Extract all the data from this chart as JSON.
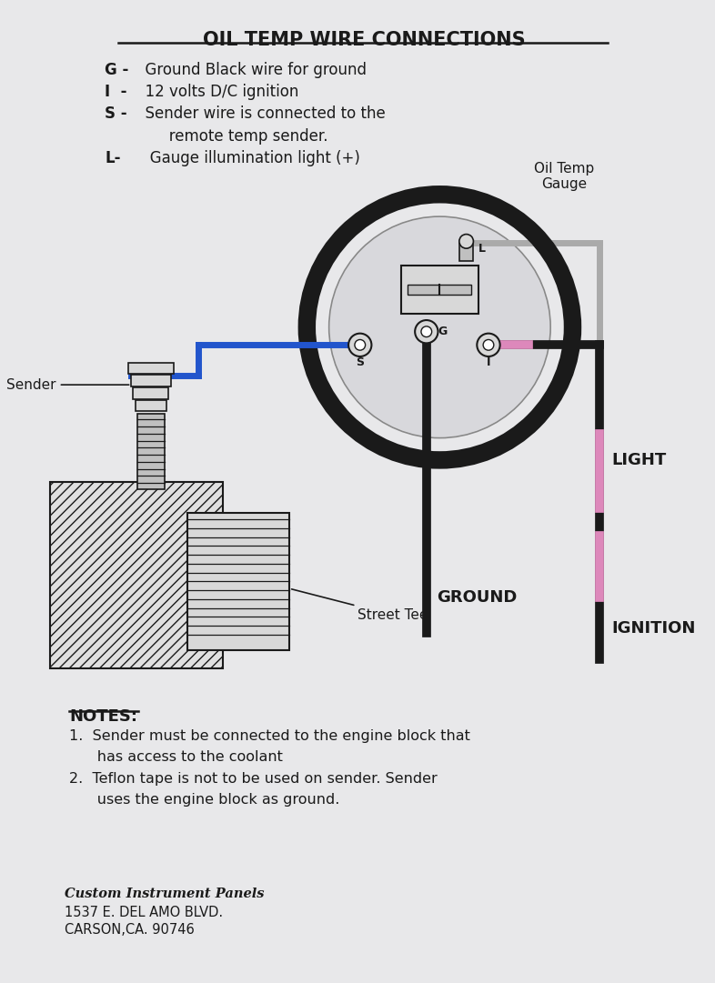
{
  "title": "OIL TEMP WIRE CONNECTIONS",
  "bg_color": "#e8e8ea",
  "gauge_label": "Oil Temp\nGauge",
  "sender_label": "Sender",
  "ground_label": "GROUND",
  "light_label": "LIGHT",
  "ignition_label": "IGNITION",
  "street_tee_label": "Street Tee",
  "notes_title": "NOTES:",
  "footer_bold": "Custom Instrument Panels",
  "footer_lines": [
    "1537 E. DEL AMO BLVD.",
    "CARSON,CA. 90746"
  ],
  "colors": {
    "black": "#1a1a1a",
    "blue": "#2255cc",
    "pink": "#dd88bb",
    "gray": "#aaaaaa",
    "light_gray": "#d8d8d8",
    "mid_gray": "#c0c0c0"
  }
}
